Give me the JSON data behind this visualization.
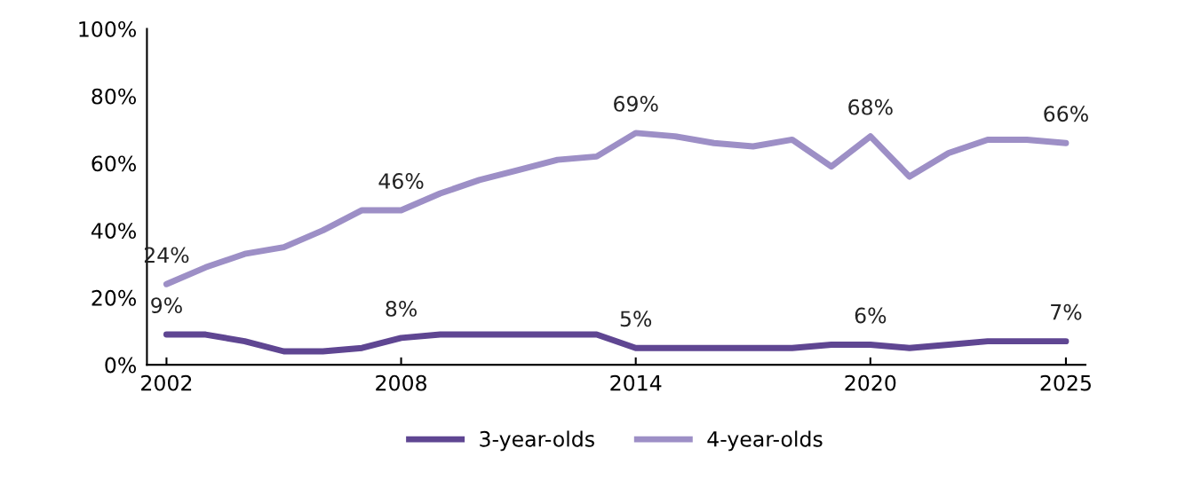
{
  "chart_data": {
    "type": "line",
    "x": [
      2002,
      2003,
      2004,
      2005,
      2006,
      2007,
      2008,
      2009,
      2010,
      2011,
      2012,
      2013,
      2014,
      2015,
      2016,
      2017,
      2018,
      2019,
      2020,
      2021,
      2022,
      2023,
      2024,
      2025
    ],
    "series": [
      {
        "name": "3-year-olds",
        "color": "#5f4692",
        "values": [
          9,
          9,
          7,
          4,
          4,
          5,
          8,
          9,
          9,
          9,
          9,
          9,
          5,
          5,
          5,
          5,
          5,
          6,
          6,
          5,
          6,
          7,
          7,
          7
        ]
      },
      {
        "name": "4-year-olds",
        "color": "#9d8fc6",
        "values": [
          24,
          29,
          33,
          35,
          40,
          46,
          46,
          51,
          55,
          58,
          61,
          62,
          69,
          68,
          66,
          65,
          67,
          59,
          68,
          56,
          63,
          67,
          67,
          66
        ]
      }
    ],
    "annotations": [
      {
        "text": "9%",
        "x": 2002,
        "y": 9
      },
      {
        "text": "8%",
        "x": 2008,
        "y": 8
      },
      {
        "text": "5%",
        "x": 2014,
        "y": 5
      },
      {
        "text": "6%",
        "x": 2020,
        "y": 6
      },
      {
        "text": "7%",
        "x": 2025,
        "y": 7
      },
      {
        "text": "24%",
        "x": 2002,
        "y": 24
      },
      {
        "text": "46%",
        "x": 2008,
        "y": 46
      },
      {
        "text": "69%",
        "x": 2014,
        "y": 69
      },
      {
        "text": "68%",
        "x": 2020,
        "y": 68
      },
      {
        "text": "66%",
        "x": 2025,
        "y": 66
      }
    ],
    "xlim": [
      2001.5,
      2025.5
    ],
    "xticks": [
      2002,
      2008,
      2014,
      2020,
      2025
    ],
    "ylim": [
      0,
      100
    ],
    "yticks": [
      {
        "value": 0,
        "label": "0%"
      },
      {
        "value": 20,
        "label": "20%"
      },
      {
        "value": 40,
        "label": "40%"
      },
      {
        "value": 60,
        "label": "60%"
      },
      {
        "value": 80,
        "label": "80%"
      },
      {
        "value": 100,
        "label": "100%"
      }
    ],
    "grid": false,
    "legend": "bottom",
    "marker": "none",
    "line_style": "solid"
  }
}
